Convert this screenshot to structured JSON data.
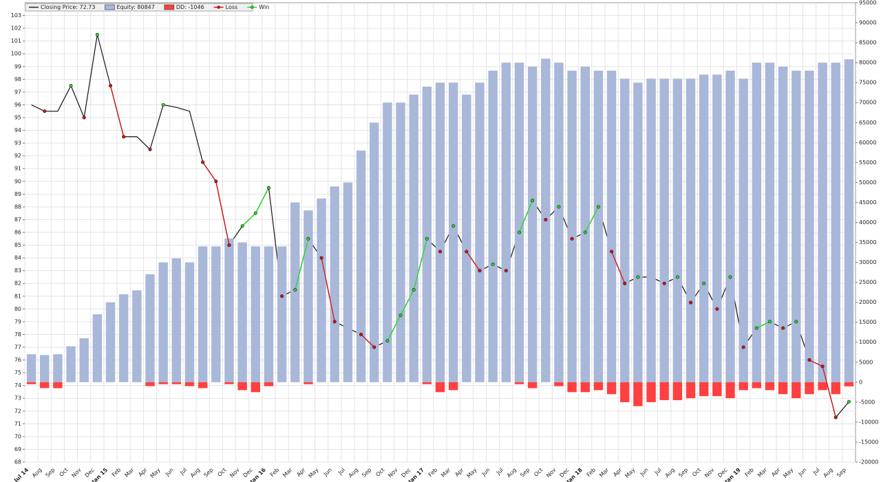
{
  "chart_data": {
    "type": "combo",
    "legend": "top-left",
    "grid": true,
    "categories": [
      "Jul 14",
      "Aug",
      "Sep",
      "Oct",
      "Nov",
      "Dec",
      "Jan 15",
      "Feb",
      "Mar",
      "Apr",
      "May",
      "Jun",
      "Jul",
      "Aug",
      "Sep",
      "Oct",
      "Nov",
      "Dec",
      "Jan 16",
      "Feb",
      "Mar",
      "Apr",
      "May",
      "Jun",
      "Jul",
      "Aug",
      "Sep",
      "Oct",
      "Nov",
      "Dec",
      "Jan 17",
      "Feb",
      "Mar",
      "Apr",
      "May",
      "Jun",
      "Jul",
      "Aug",
      "Sep",
      "Oct",
      "Nov",
      "Dec",
      "Jan 18",
      "Feb",
      "Mar",
      "Apr",
      "May",
      "Jun",
      "Jul",
      "Aug",
      "Sep",
      "Oct",
      "Nov",
      "Dec",
      "Jan 19",
      "Feb",
      "Mar",
      "Apr",
      "May",
      "Jun",
      "Jul",
      "Aug",
      "Sep"
    ],
    "ylim": [
      68,
      104
    ],
    "yticks": [
      68,
      69,
      70,
      71,
      72,
      73,
      74,
      75,
      76,
      77,
      78,
      79,
      80,
      81,
      82,
      83,
      84,
      85,
      86,
      87,
      88,
      89,
      90,
      91,
      92,
      93,
      94,
      95,
      96,
      97,
      98,
      99,
      100,
      101,
      102,
      103
    ],
    "y2lim": [
      -20000,
      95000
    ],
    "y2ticks": [
      -20000,
      -15000,
      -10000,
      -5000,
      0,
      5000,
      10000,
      15000,
      20000,
      25000,
      30000,
      35000,
      40000,
      45000,
      50000,
      55000,
      60000,
      65000,
      70000,
      75000,
      80000,
      85000,
      90000,
      95000
    ],
    "series": [
      {
        "name": "Closing Price: 72.73",
        "kind": "line",
        "color": "#222222",
        "values": [
          96,
          95.5,
          95.5,
          97.5,
          95,
          101.5,
          97.5,
          93.5,
          93.5,
          92.5,
          96,
          95.8,
          95.5,
          91.5,
          90,
          85,
          86.5,
          87.5,
          89.5,
          81,
          81.5,
          85.5,
          84,
          79,
          78.5,
          78,
          77,
          77.5,
          79.5,
          81.5,
          85.5,
          84.5,
          86.5,
          84.5,
          83,
          83.5,
          83,
          86,
          88.5,
          87,
          88,
          85.5,
          86,
          88,
          84.5,
          82,
          82.5,
          82.5,
          82,
          82.5,
          80.5,
          82,
          80,
          82.5,
          77,
          78.5,
          79,
          78.5,
          79,
          76,
          75.5,
          71.5,
          72.73
        ]
      },
      {
        "name": "Equity: 80847",
        "kind": "bar",
        "axis": "y2",
        "color": "#a9b7d9",
        "values": [
          7000,
          6800,
          7000,
          9000,
          11000,
          17000,
          20000,
          22000,
          23000,
          27000,
          30000,
          31000,
          30000,
          34000,
          34000,
          36000,
          35000,
          34000,
          34000,
          34000,
          45000,
          43000,
          46000,
          49000,
          50000,
          58000,
          65000,
          70000,
          70000,
          72000,
          74000,
          75000,
          75000,
          72000,
          75000,
          78000,
          80000,
          80000,
          79000,
          81000,
          80000,
          78000,
          79000,
          78000,
          78000,
          76000,
          75000,
          76000,
          76000,
          76000,
          76000,
          77000,
          77000,
          78000,
          76000,
          80000,
          80000,
          79000,
          78000,
          78000,
          80000,
          80000,
          80847
        ]
      },
      {
        "name": "DD: -1046",
        "kind": "bar",
        "axis": "y2",
        "color": "#ff4040",
        "values": [
          -500,
          -1500,
          -1500,
          0,
          0,
          0,
          0,
          0,
          0,
          -1000,
          -500,
          -500,
          -1000,
          -1500,
          0,
          -500,
          -2000,
          -2500,
          -1000,
          0,
          0,
          -500,
          0,
          0,
          0,
          0,
          0,
          0,
          0,
          0,
          -500,
          -2500,
          -2000,
          0,
          0,
          0,
          0,
          -500,
          -1500,
          0,
          -1000,
          -2500,
          -2500,
          -2000,
          -3000,
          -5000,
          -6000,
          -5000,
          -4500,
          -4500,
          -4000,
          -3500,
          -3500,
          -4000,
          -2000,
          -1500,
          -2000,
          -3000,
          -4000,
          -3000,
          -2000,
          -3000,
          -1046
        ]
      },
      {
        "name": "Loss",
        "kind": "marker-line",
        "color": "#dd1111",
        "values": [
          null,
          95.5,
          null,
          null,
          95,
          null,
          97.5,
          93.5,
          null,
          92.5,
          null,
          null,
          null,
          91.5,
          90,
          85,
          null,
          null,
          null,
          81,
          null,
          null,
          84,
          79,
          null,
          78,
          77,
          null,
          null,
          null,
          null,
          84.5,
          null,
          84.5,
          83,
          null,
          83,
          null,
          null,
          87,
          null,
          85.5,
          null,
          null,
          84.5,
          82,
          null,
          null,
          82,
          null,
          80.5,
          null,
          80,
          null,
          77,
          null,
          null,
          78.5,
          null,
          76,
          75.5,
          71.5,
          null
        ]
      },
      {
        "name": "Win",
        "kind": "marker-line",
        "color": "#22dd22",
        "values": [
          null,
          null,
          null,
          97.5,
          null,
          101.5,
          null,
          null,
          null,
          null,
          96,
          null,
          null,
          null,
          null,
          null,
          86.5,
          87.5,
          89.5,
          null,
          81.5,
          85.5,
          null,
          null,
          null,
          null,
          null,
          77.5,
          79.5,
          81.5,
          85.5,
          null,
          86.5,
          null,
          null,
          83.5,
          null,
          86,
          88.5,
          null,
          88,
          null,
          86,
          88,
          null,
          null,
          82.5,
          null,
          null,
          82.5,
          null,
          82,
          null,
          82.5,
          null,
          78.5,
          79,
          null,
          79,
          null,
          null,
          null,
          72.73
        ]
      }
    ]
  }
}
